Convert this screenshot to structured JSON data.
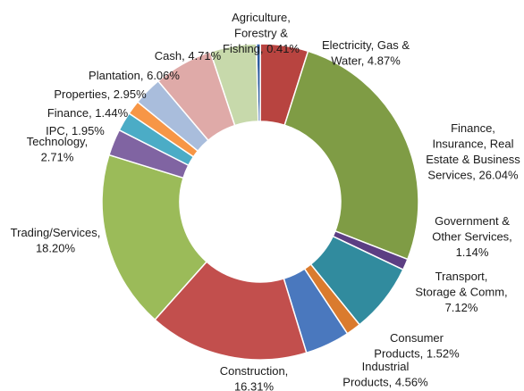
{
  "chart_data": {
    "type": "pie",
    "variant": "donut",
    "title": "",
    "legend": "none",
    "series": [
      {
        "slices": [
          {
            "label": "Agriculture, Forestry & Fishing",
            "value": 0.41,
            "color": "#2E5DA0",
            "label_lines": [
              "Agriculture,",
              "Forestry &",
              "Fishing, 0.41%"
            ]
          },
          {
            "label": "Electricity, Gas & Water",
            "value": 4.87,
            "color": "#B84440",
            "label_lines": [
              "Electricity, Gas &",
              "Water, 4.87%"
            ]
          },
          {
            "label": "Finance, Insurance, Real Estate & Business Services",
            "value": 26.04,
            "color": "#7F9C45",
            "label_lines": [
              "Finance,",
              "Insurance, Real",
              "Estate & Business",
              "Services, 26.04%"
            ]
          },
          {
            "label": "Government & Other Services",
            "value": 1.14,
            "color": "#5C3E83",
            "label_lines": [
              "Government &",
              "Other Services,",
              "1.14%"
            ]
          },
          {
            "label": "Transport, Storage & Comm",
            "value": 7.12,
            "color": "#318B9E",
            "label_lines": [
              "Transport,",
              "Storage & Comm,",
              "7.12%"
            ]
          },
          {
            "label": "Consumer Products",
            "value": 1.52,
            "color": "#DA7B2E",
            "label_lines": [
              "Consumer",
              "Products, 1.52%"
            ]
          },
          {
            "label": "Industrial Products",
            "value": 4.56,
            "color": "#4A78BE",
            "label_lines": [
              "Industrial",
              "Products, 4.56%"
            ]
          },
          {
            "label": "Construction",
            "value": 16.31,
            "color": "#C24F4D",
            "label_lines": [
              "Construction,",
              "16.31%"
            ]
          },
          {
            "label": "Trading/Services",
            "value": 18.2,
            "color": "#9BBB59",
            "label_lines": [
              "Trading/Services,",
              "18.20%"
            ]
          },
          {
            "label": "Technology",
            "value": 2.71,
            "color": "#8064A2",
            "label_lines": [
              "Technology,",
              "2.71%"
            ]
          },
          {
            "label": "IPC",
            "value": 1.95,
            "color": "#4BACC6",
            "label_lines": [
              "IPC, 1.95%"
            ]
          },
          {
            "label": "Finance",
            "value": 1.44,
            "color": "#F79646",
            "label_lines": [
              "Finance, 1.44%"
            ]
          },
          {
            "label": "Properties",
            "value": 2.95,
            "color": "#A9BDDC",
            "label_lines": [
              "Properties, 2.95%"
            ]
          },
          {
            "label": "Plantation",
            "value": 6.06,
            "color": "#DFAAA8",
            "label_lines": [
              "Plantation, 6.06%"
            ]
          },
          {
            "label": "Cash",
            "value": 4.71,
            "color": "#C7D9AB",
            "label_lines": [
              "Cash, 4.71%"
            ]
          }
        ]
      }
    ]
  }
}
